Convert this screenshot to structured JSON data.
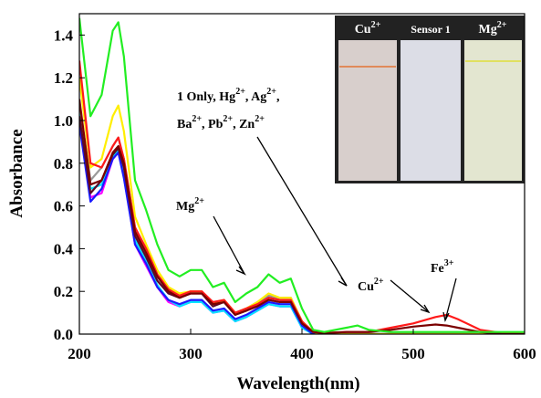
{
  "chart_data": {
    "type": "line",
    "x_label": "Wavelength(nm)",
    "y_label": "Absorbance",
    "xlim": [
      200,
      600
    ],
    "ylim": [
      0,
      1.5
    ],
    "xticks": [
      200,
      300,
      400,
      500,
      600
    ],
    "yticks": [
      {
        "value": 0,
        "label": "0.0"
      },
      0.2,
      0.4,
      0.6,
      0.8,
      {
        "value": 1,
        "label": "1.0"
      },
      1.2,
      1.4
    ],
    "x": [
      200,
      210,
      220,
      230,
      235,
      240,
      250,
      260,
      270,
      280,
      290,
      300,
      310,
      320,
      330,
      340,
      350,
      360,
      370,
      380,
      390,
      400,
      410,
      420,
      440,
      450,
      460,
      480,
      500,
      520,
      530,
      540,
      560,
      580,
      600
    ],
    "series": [
      {
        "color": "#ff00ff",
        "values": [
          1.0,
          0.64,
          0.66,
          0.82,
          0.85,
          0.74,
          0.42,
          0.32,
          0.22,
          0.15,
          0.13,
          0.15,
          0.15,
          0.1,
          0.11,
          0.06,
          0.08,
          0.11,
          0.14,
          0.13,
          0.13,
          0.03,
          0,
          0,
          0,
          0,
          0,
          0,
          0,
          0,
          0,
          0,
          0,
          0,
          0
        ]
      },
      {
        "color": "#00e5ff",
        "values": [
          1.05,
          0.68,
          0.7,
          0.83,
          0.86,
          0.76,
          0.44,
          0.34,
          0.23,
          0.16,
          0.13,
          0.15,
          0.15,
          0.1,
          0.11,
          0.06,
          0.08,
          0.11,
          0.14,
          0.13,
          0.13,
          0.03,
          0,
          0,
          0,
          0,
          0,
          0,
          0,
          0,
          0,
          0,
          0,
          0,
          0
        ]
      },
      {
        "color": "#1a1aff",
        "values": [
          0.98,
          0.62,
          0.68,
          0.82,
          0.85,
          0.73,
          0.42,
          0.33,
          0.22,
          0.16,
          0.14,
          0.16,
          0.16,
          0.11,
          0.12,
          0.07,
          0.09,
          0.12,
          0.15,
          0.14,
          0.14,
          0.04,
          0,
          0,
          0,
          0,
          0,
          0,
          0,
          0,
          0,
          0,
          0,
          0,
          0
        ]
      },
      {
        "color": "#999999",
        "values": [
          1.08,
          0.72,
          0.78,
          0.88,
          0.92,
          0.82,
          0.5,
          0.38,
          0.27,
          0.2,
          0.18,
          0.2,
          0.2,
          0.14,
          0.16,
          0.1,
          0.12,
          0.15,
          0.18,
          0.17,
          0.17,
          0.06,
          0.01,
          0,
          0,
          0,
          0,
          0,
          0,
          0,
          0,
          0,
          0,
          0,
          0
        ]
      },
      {
        "color": "#5a0a2a",
        "values": [
          1.02,
          0.66,
          0.72,
          0.84,
          0.87,
          0.78,
          0.46,
          0.36,
          0.25,
          0.19,
          0.17,
          0.19,
          0.19,
          0.13,
          0.15,
          0.09,
          0.11,
          0.14,
          0.17,
          0.16,
          0.16,
          0.05,
          0.01,
          0,
          0,
          0,
          0,
          0,
          0,
          0,
          0,
          0,
          0,
          0,
          0
        ]
      },
      {
        "color": "#ffee00",
        "values": [
          1.2,
          0.78,
          0.82,
          1.02,
          1.07,
          0.95,
          0.55,
          0.42,
          0.3,
          0.22,
          0.19,
          0.2,
          0.2,
          0.14,
          0.16,
          0.1,
          0.12,
          0.15,
          0.19,
          0.17,
          0.17,
          0.06,
          0.01,
          0,
          0,
          0,
          0,
          0,
          0,
          0,
          0,
          0,
          0,
          0,
          0
        ]
      },
      {
        "color": "#ff1a1a",
        "values": [
          1.28,
          0.8,
          0.78,
          0.88,
          0.92,
          0.82,
          0.5,
          0.4,
          0.28,
          0.21,
          0.18,
          0.2,
          0.2,
          0.15,
          0.16,
          0.1,
          0.12,
          0.14,
          0.17,
          0.16,
          0.16,
          0.06,
          0.01,
          0.005,
          0.01,
          0.01,
          0.01,
          0.03,
          0.05,
          0.08,
          0.09,
          0.07,
          0.02,
          0.005,
          0
        ]
      },
      {
        "color": "#7a0000",
        "values": [
          1.1,
          0.7,
          0.72,
          0.85,
          0.88,
          0.8,
          0.48,
          0.38,
          0.27,
          0.2,
          0.17,
          0.19,
          0.19,
          0.14,
          0.15,
          0.09,
          0.11,
          0.13,
          0.16,
          0.15,
          0.15,
          0.05,
          0.01,
          0.005,
          0.01,
          0.01,
          0.01,
          0.02,
          0.035,
          0.045,
          0.04,
          0.03,
          0.01,
          0,
          0
        ]
      },
      {
        "color": "#22ee22",
        "values": [
          1.48,
          1.02,
          1.12,
          1.42,
          1.46,
          1.3,
          0.72,
          0.58,
          0.42,
          0.3,
          0.27,
          0.3,
          0.3,
          0.22,
          0.24,
          0.15,
          0.19,
          0.22,
          0.28,
          0.24,
          0.26,
          0.12,
          0.02,
          0.01,
          0.03,
          0.04,
          0.02,
          0.01,
          0.01,
          0.01,
          0.01,
          0.01,
          0.01,
          0.01,
          0.01
        ]
      }
    ],
    "annotations": [
      {
        "parts": [
          "1 Only, Hg",
          "2+",
          ", Ag",
          "2+",
          ","
        ]
      },
      {
        "parts": [
          "Ba",
          "2+",
          ", Pb",
          "2+",
          ", Zn",
          "2+"
        ]
      },
      {
        "parts": [
          "Mg",
          "2+"
        ]
      },
      {
        "parts": [
          "Cu",
          "2+"
        ]
      },
      {
        "parts": [
          "Fe",
          "3+"
        ]
      }
    ],
    "inset_labels": [
      {
        "parts": [
          "Cu",
          "2+"
        ]
      },
      {
        "parts": [
          "Sensor 1"
        ]
      },
      {
        "parts": [
          "Mg",
          "2+"
        ]
      }
    ]
  }
}
